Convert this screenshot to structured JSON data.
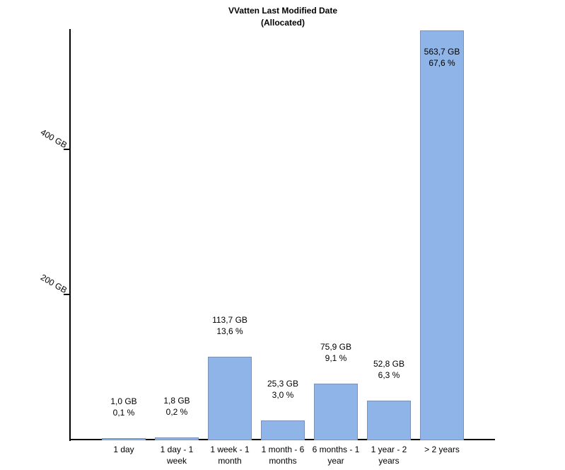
{
  "chart_data": {
    "type": "bar",
    "title": "VVatten Last Modified Date",
    "subtitle": "(Allocated)",
    "categories": [
      "1 day",
      "1 day - 1 week",
      "1 week - 1 month",
      "1 month - 6 months",
      "6 months - 1 year",
      "1 year - 2 years",
      "> 2 years"
    ],
    "values_gb": [
      1.0,
      1.8,
      113.7,
      25.3,
      75.9,
      52.8,
      563.7
    ],
    "percents": [
      0.1,
      0.2,
      13.6,
      3.0,
      9.1,
      6.3,
      67.6
    ],
    "bar_value_labels": [
      [
        "1,0 GB",
        "0,1 %"
      ],
      [
        "1,8 GB",
        "0,2 %"
      ],
      [
        "113,7 GB",
        "13,6 %"
      ],
      [
        "25,3 GB",
        "3,0 %"
      ],
      [
        "75,9 GB",
        "9,1 %"
      ],
      [
        "52,8 GB",
        "6,3 %"
      ],
      [
        "563,7 GB",
        "67,6 %"
      ]
    ],
    "y_axis": {
      "unit": "GB",
      "ticks": [
        {
          "value": 200,
          "label": "200 GB"
        },
        {
          "value": 400,
          "label": "400 GB"
        }
      ],
      "range_gb": [
        0,
        585
      ]
    },
    "grid": false,
    "legend": null,
    "colors": {
      "bar_fill": "#8FB4E8",
      "bar_border": "#7A90B8",
      "axis": "#000000",
      "text": "#000000",
      "background": "#FFFFFF"
    }
  }
}
